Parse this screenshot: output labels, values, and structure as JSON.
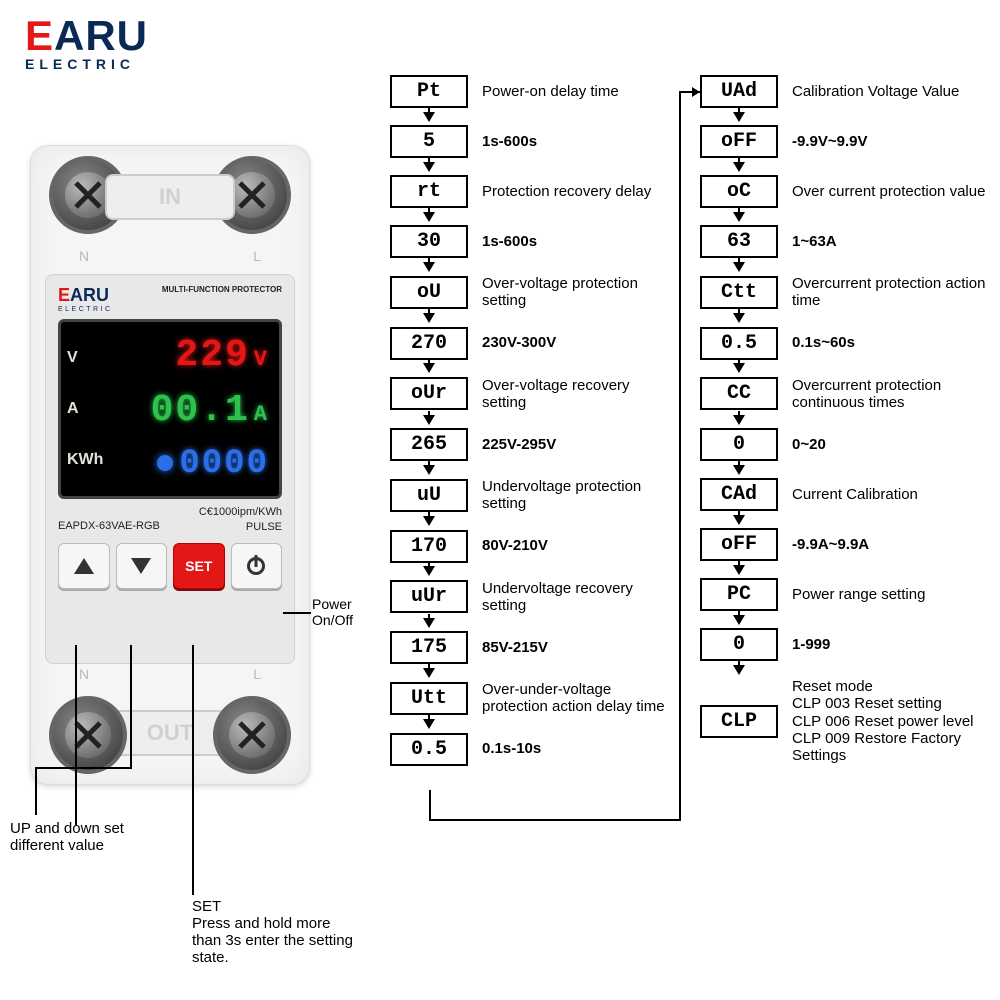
{
  "logo": {
    "e": "E",
    "aru": "ARU",
    "sub": "ELECTRIC"
  },
  "device": {
    "in_label": "IN",
    "out_label": "OUT",
    "n": "N",
    "l": "L",
    "panel_logo": "EARU",
    "panel_logo_sub": "ELECTRIC",
    "mfp": "MULTI-FUNCTION PROTECTOR",
    "v_label": "V",
    "a_label": "A",
    "kwh_label": "KWh",
    "voltage": "229",
    "voltage_unit": "V",
    "current": "00.1",
    "current_unit": "A",
    "energy": "0000",
    "ce_line": "C€1000ipm/KWh",
    "pulse": "PULSE",
    "model": "EAPDX-63VAE-RGB",
    "set_label": "SET"
  },
  "annotations": {
    "power": "Power\nOn/Off",
    "updown": "UP and down set\ndifferent value",
    "set": "SET\nPress and hold more\nthan 3s enter the setting\nstate."
  },
  "flow1": [
    {
      "lcd": "Pt",
      "desc": "Power-on delay time",
      "bold": false
    },
    {
      "lcd": "5",
      "desc": "1s-600s",
      "bold": true
    },
    {
      "lcd": "rt",
      "desc": "Protection recovery delay",
      "bold": false
    },
    {
      "lcd": "30",
      "desc": "1s-600s",
      "bold": true
    },
    {
      "lcd": "oU",
      "desc": "Over-voltage protection setting",
      "bold": false
    },
    {
      "lcd": "270",
      "desc": "230V-300V",
      "bold": true
    },
    {
      "lcd": "oUr",
      "desc": "Over-voltage recovery setting",
      "bold": false
    },
    {
      "lcd": "265",
      "desc": "225V-295V",
      "bold": true
    },
    {
      "lcd": "uU",
      "desc": "Undervoltage protection setting",
      "bold": false
    },
    {
      "lcd": "170",
      "desc": "80V-210V",
      "bold": true
    },
    {
      "lcd": "uUr",
      "desc": "Undervoltage recovery setting",
      "bold": false
    },
    {
      "lcd": "175",
      "desc": "85V-215V",
      "bold": true
    },
    {
      "lcd": "Utt",
      "desc": "Over-under-voltage protection action delay time",
      "bold": false
    },
    {
      "lcd": "0.5",
      "desc": "0.1s-10s",
      "bold": true
    }
  ],
  "flow2": [
    {
      "lcd": "UAd",
      "desc": "Calibration Voltage Value",
      "bold": false
    },
    {
      "lcd": "oFF",
      "desc": "-9.9V~9.9V",
      "bold": true
    },
    {
      "lcd": "oC",
      "desc": "Over current protection value",
      "bold": false
    },
    {
      "lcd": "63",
      "desc": "1~63A",
      "bold": true
    },
    {
      "lcd": "Ctt",
      "desc": "Overcurrent protection action time",
      "bold": false
    },
    {
      "lcd": "0.5",
      "desc": "0.1s~60s",
      "bold": true
    },
    {
      "lcd": "CC",
      "desc": "Overcurrent protection continuous times",
      "bold": false
    },
    {
      "lcd": "0",
      "desc": "0~20",
      "bold": true
    },
    {
      "lcd": "CAd",
      "desc": "Current Calibration",
      "bold": false
    },
    {
      "lcd": "oFF",
      "desc": "-9.9A~9.9A",
      "bold": true
    },
    {
      "lcd": "PC",
      "desc": "Power range setting",
      "bold": false
    },
    {
      "lcd": "0",
      "desc": "1-999",
      "bold": true
    },
    {
      "lcd": "CLP",
      "desc": "Reset mode\nCLP 003 Reset setting\nCLP 006 Reset power level\nCLP 009 Restore Factory Settings",
      "bold": false
    }
  ],
  "colors": {
    "red": "#e41717",
    "navy": "#0a2a55",
    "green": "#2cc24d",
    "blue": "#2a6fe8"
  }
}
